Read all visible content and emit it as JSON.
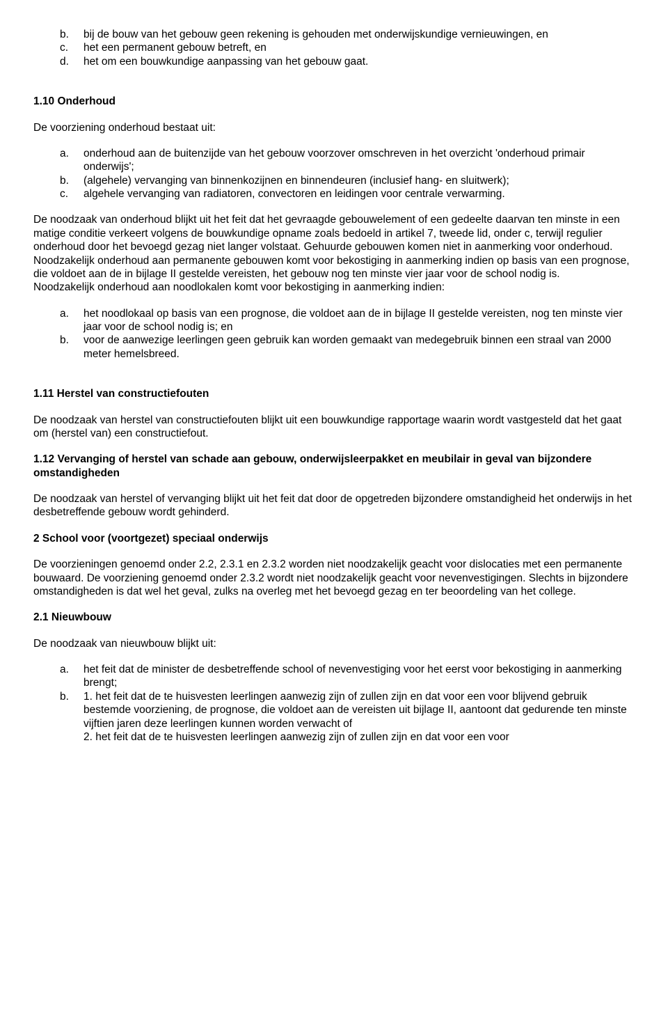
{
  "list1": {
    "b": {
      "m": "b.",
      "t": "bij de bouw van het gebouw geen rekening is gehouden met onderwijskundige vernieuwingen, en"
    },
    "c": {
      "m": "c.",
      "t": "het een permanent gebouw betreft, en"
    },
    "d": {
      "m": "d.",
      "t": "het om een bouwkundige aanpassing van het gebouw gaat."
    }
  },
  "h110": "1.10 Onderhoud",
  "p110_intro": "De voorziening onderhoud bestaat uit:",
  "list2": {
    "a": {
      "m": "a.",
      "t": "onderhoud aan de buitenzijde van het gebouw voorzover omschreven in het overzicht 'onderhoud primair onderwijs';"
    },
    "b": {
      "m": "b.",
      "t": "(algehele) vervanging van binnenkozijnen en binnendeuren (inclusief hang- en sluitwerk);"
    },
    "c": {
      "m": "c.",
      "t": "algehele vervanging van radiatoren, convectoren en leidingen voor centrale verwarming."
    }
  },
  "p110_body1": "De noodzaak van onderhoud blijkt uit het feit dat het gevraagde gebouwelement of een gedeelte daarvan ten minste in een matige conditie verkeert volgens de bouwkundige opname zoals bedoeld in artikel 7, tweede lid, onder c, terwijl regulier onderhoud door het bevoegd gezag niet langer volstaat. Gehuurde gebouwen komen niet in aanmerking voor onderhoud.",
  "p110_body2": "Noodzakelijk onderhoud aan permanente gebouwen komt voor bekostiging in aanmerking indien op basis van een prognose, die voldoet aan de in bijlage II gestelde vereisten, het gebouw nog ten minste vier jaar voor de school nodig is.",
  "p110_body3": "Noodzakelijk onderhoud aan noodlokalen komt voor bekostiging in aanmerking indien:",
  "list3": {
    "a": {
      "m": "a.",
      "t": "het noodlokaal op basis van een prognose, die voldoet aan de in bijlage II gestelde vereisten, nog ten minste vier jaar voor de school nodig is; en"
    },
    "b": {
      "m": "b.",
      "t": "voor de aanwezige leerlingen geen gebruik kan worden gemaakt van medegebruik binnen een straal van 2000 meter hemelsbreed."
    }
  },
  "h111": "1.11 Herstel van constructiefouten",
  "p111": "De noodzaak van herstel van constructiefouten blijkt uit een bouwkundige rapportage waarin wordt vastgesteld dat het gaat om (herstel van) een constructiefout.",
  "h112": "1.12 Vervanging of herstel van schade aan gebouw, onderwijsleerpakket en meubilair in geval van bijzondere omstandigheden",
  "p112": "De noodzaak van herstel of vervanging blijkt uit het feit dat door de opgetreden bijzondere omstandigheid het onderwijs in het desbetreffende gebouw wordt gehinderd.",
  "h2": "2 School voor (voortgezet) speciaal onderwijs",
  "p2": "De voorzieningen genoemd onder 2.2, 2.3.1 en 2.3.2 worden niet noodzakelijk geacht voor dislocaties met een permanente bouwaard. De voorziening genoemd onder 2.3.2 wordt niet noodzakelijk geacht voor nevenvestigingen. Slechts in bijzondere omstandigheden is dat wel het geval, zulks na overleg met het bevoegd gezag en ter beoordeling van het college.",
  "h21": "2.1 Nieuwbouw",
  "p21_intro": "De noodzaak van nieuwbouw blijkt uit:",
  "list4": {
    "a": {
      "m": "a.",
      "t": "het feit dat de minister de desbetreffende school of nevenvestiging voor het eerst voor bekostiging in aanmerking brengt;"
    },
    "b": {
      "m": "b.",
      "t": "1. het feit dat de te huisvesten leerlingen aanwezig zijn of zullen zijn en dat voor een voor blijvend gebruik bestemde voorziening, de prognose, die voldoet aan de vereisten uit bijlage II, aantoont dat gedurende ten minste vijftien jaren deze leerlingen kunnen worden verwacht of"
    },
    "b2": "2. het feit dat de te huisvesten leerlingen aanwezig zijn of zullen zijn en dat voor een voor"
  }
}
